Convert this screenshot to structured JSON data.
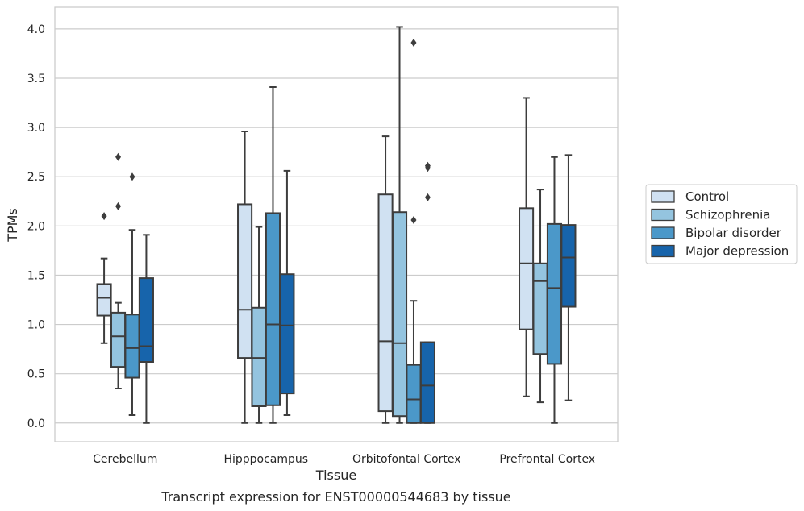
{
  "caption": "Transcript expression for ENST00000544683 by tissue",
  "chart_data": {
    "type": "box",
    "xlabel": "Tissue",
    "ylabel": "TPMs",
    "ylim": [
      -0.19,
      4.22
    ],
    "yticks": [
      0.0,
      0.5,
      1.0,
      1.5,
      2.0,
      2.5,
      3.0,
      3.5,
      4.0
    ],
    "ytick_labels": [
      "0.0",
      "0.5",
      "1.0",
      "1.5",
      "2.0",
      "2.5",
      "3.0",
      "3.5",
      "4.0"
    ],
    "grid": "horizontal",
    "legend_position": "right",
    "categories": [
      "Cerebellum",
      "Hipppocampus",
      "Orbitofontal Cortex",
      "Prefrontal Cortex"
    ],
    "series": [
      {
        "name": "Control",
        "color": "#d0e1f2",
        "boxes": [
          {
            "whislo": 0.81,
            "q1": 1.09,
            "med": 1.27,
            "q3": 1.41,
            "whishi": 1.67,
            "fliers": [
              2.1
            ]
          },
          {
            "whislo": 0.0,
            "q1": 0.66,
            "med": 1.15,
            "q3": 2.22,
            "whishi": 2.96,
            "fliers": []
          },
          {
            "whislo": 0.0,
            "q1": 0.12,
            "med": 0.83,
            "q3": 2.32,
            "whishi": 2.91,
            "fliers": []
          },
          {
            "whislo": 0.27,
            "q1": 0.95,
            "med": 1.62,
            "q3": 2.18,
            "whishi": 3.3,
            "fliers": []
          }
        ]
      },
      {
        "name": "Schizophrenia",
        "color": "#94c4df",
        "boxes": [
          {
            "whislo": 0.35,
            "q1": 0.57,
            "med": 0.88,
            "q3": 1.12,
            "whishi": 1.22,
            "fliers": [
              2.2,
              2.7
            ]
          },
          {
            "whislo": 0.0,
            "q1": 0.17,
            "med": 0.66,
            "q3": 1.17,
            "whishi": 1.99,
            "fliers": []
          },
          {
            "whislo": 0.0,
            "q1": 0.07,
            "med": 0.81,
            "q3": 2.14,
            "whishi": 4.02,
            "fliers": []
          },
          {
            "whislo": 0.21,
            "q1": 0.7,
            "med": 1.44,
            "q3": 1.62,
            "whishi": 2.37,
            "fliers": []
          }
        ]
      },
      {
        "name": "Bipolar disorder",
        "color": "#4b98c9",
        "boxes": [
          {
            "whislo": 0.08,
            "q1": 0.46,
            "med": 0.76,
            "q3": 1.1,
            "whishi": 1.96,
            "fliers": [
              2.5
            ]
          },
          {
            "whislo": 0.0,
            "q1": 0.18,
            "med": 1.0,
            "q3": 2.13,
            "whishi": 3.41,
            "fliers": []
          },
          {
            "whislo": 0.0,
            "q1": 0.0,
            "med": 0.24,
            "q3": 0.59,
            "whishi": 1.24,
            "fliers": [
              2.06,
              3.86
            ]
          },
          {
            "whislo": 0.0,
            "q1": 0.6,
            "med": 1.37,
            "q3": 2.02,
            "whishi": 2.7,
            "fliers": []
          }
        ]
      },
      {
        "name": "Major depression",
        "color": "#1764ab",
        "boxes": [
          {
            "whislo": 0.0,
            "q1": 0.62,
            "med": 0.78,
            "q3": 1.47,
            "whishi": 1.91,
            "fliers": []
          },
          {
            "whislo": 0.08,
            "q1": 0.3,
            "med": 0.99,
            "q3": 1.51,
            "whishi": 2.56,
            "fliers": []
          },
          {
            "whislo": 0.0,
            "q1": 0.0,
            "med": 0.38,
            "q3": 0.82,
            "whishi": 0.82,
            "fliers": [
              2.29,
              2.59,
              2.61
            ]
          },
          {
            "whislo": 0.23,
            "q1": 1.18,
            "med": 1.68,
            "q3": 2.01,
            "whishi": 2.72,
            "fliers": []
          }
        ]
      }
    ]
  }
}
